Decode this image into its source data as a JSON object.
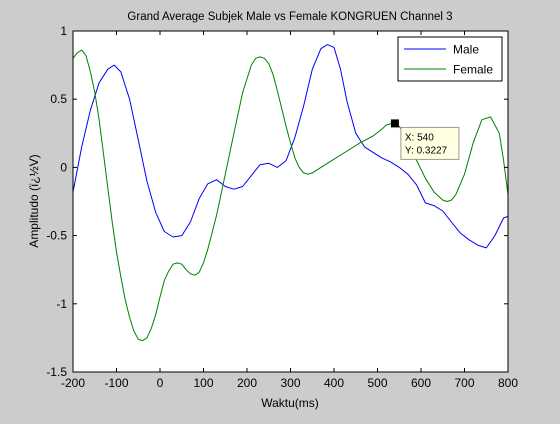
{
  "chart_data": {
    "type": "line",
    "title": "Grand Average Subjek Male vs Female KONGRUEN Channel 3",
    "xlabel": "Waktu(ms)",
    "ylabel": "Amplitudo (ï¿½V)",
    "xlim": [
      -200,
      800
    ],
    "ylim": [
      -1.5,
      1
    ],
    "xticks": [
      -200,
      -100,
      0,
      100,
      200,
      300,
      400,
      500,
      600,
      700,
      800
    ],
    "yticks": [
      -1.5,
      -1,
      -0.5,
      0,
      0.5,
      1
    ],
    "grid": false,
    "legend_position": "top-right",
    "series": [
      {
        "name": "Male",
        "color": "#0000ff",
        "x": [
          -200,
          -180,
          -160,
          -140,
          -120,
          -105,
          -90,
          -70,
          -50,
          -30,
          -10,
          10,
          30,
          50,
          70,
          90,
          110,
          130,
          150,
          170,
          190,
          210,
          230,
          250,
          270,
          290,
          310,
          330,
          350,
          370,
          385,
          400,
          415,
          430,
          450,
          470,
          490,
          510,
          530,
          550,
          570,
          590,
          610,
          630,
          650,
          670,
          690,
          710,
          730,
          750,
          770,
          790,
          800
        ],
        "y": [
          -0.18,
          0.15,
          0.42,
          0.62,
          0.72,
          0.75,
          0.7,
          0.5,
          0.2,
          -0.1,
          -0.33,
          -0.47,
          -0.51,
          -0.5,
          -0.4,
          -0.23,
          -0.12,
          -0.09,
          -0.14,
          -0.16,
          -0.14,
          -0.06,
          0.02,
          0.03,
          0.0,
          0.05,
          0.22,
          0.45,
          0.72,
          0.87,
          0.9,
          0.88,
          0.72,
          0.48,
          0.25,
          0.15,
          0.11,
          0.07,
          0.04,
          0.0,
          -0.05,
          -0.13,
          -0.26,
          -0.28,
          -0.32,
          -0.4,
          -0.48,
          -0.53,
          -0.57,
          -0.59,
          -0.5,
          -0.37,
          -0.36
        ]
      },
      {
        "name": "Female",
        "color": "#008000",
        "x": [
          -200,
          -190,
          -180,
          -170,
          -160,
          -150,
          -140,
          -130,
          -120,
          -110,
          -100,
          -90,
          -80,
          -70,
          -60,
          -50,
          -40,
          -30,
          -20,
          -10,
          0,
          10,
          20,
          30,
          40,
          50,
          60,
          70,
          80,
          90,
          100,
          110,
          130,
          150,
          170,
          190,
          210,
          220,
          230,
          240,
          250,
          260,
          270,
          280,
          290,
          300,
          310,
          320,
          330,
          340,
          350,
          370,
          400,
          430,
          460,
          490,
          510,
          520,
          530,
          540,
          550,
          570,
          590,
          610,
          630,
          650,
          660,
          670,
          680,
          700,
          720,
          740,
          760,
          780,
          790,
          800
        ],
        "y": [
          0.8,
          0.84,
          0.86,
          0.82,
          0.7,
          0.55,
          0.35,
          0.1,
          -0.15,
          -0.4,
          -0.62,
          -0.8,
          -0.97,
          -1.1,
          -1.2,
          -1.26,
          -1.27,
          -1.25,
          -1.18,
          -1.08,
          -0.95,
          -0.83,
          -0.76,
          -0.71,
          -0.7,
          -0.71,
          -0.75,
          -0.78,
          -0.79,
          -0.77,
          -0.7,
          -0.6,
          -0.35,
          -0.05,
          0.25,
          0.55,
          0.75,
          0.8,
          0.81,
          0.8,
          0.76,
          0.68,
          0.56,
          0.43,
          0.3,
          0.18,
          0.07,
          0.0,
          -0.04,
          -0.05,
          -0.04,
          0.0,
          0.06,
          0.12,
          0.18,
          0.23,
          0.28,
          0.31,
          0.32,
          0.3227,
          0.3,
          0.2,
          0.05,
          -0.08,
          -0.18,
          -0.24,
          -0.25,
          -0.24,
          -0.2,
          -0.05,
          0.18,
          0.35,
          0.37,
          0.25,
          0.05,
          -0.2
        ]
      }
    ],
    "datatip": {
      "series": "Female",
      "x": 540,
      "y": 0.3227,
      "x_text": "X: 540",
      "y_text": "Y: 0.3227"
    }
  }
}
